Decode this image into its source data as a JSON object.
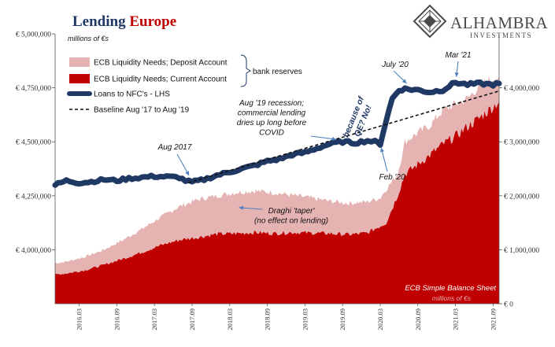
{
  "brand": {
    "name": "ALHAMBRA",
    "sub": "INVESTMENTS",
    "logo_icon": "alhambra-diamond-logo-icon",
    "color": "#4a4a4a"
  },
  "chart_data": {
    "type": "area",
    "title_part1": "Lending ",
    "title_part2": "Europe",
    "title_colors": [
      "#1f3864",
      "#c00000"
    ],
    "units_left": "millions of €s",
    "units_right": "millions of €s",
    "source_note": "ECB Simple Balance Sheet",
    "y_left": {
      "ticks": [
        "€ 5,000,000",
        "€ 4,750,000",
        "€ 4,500,000",
        "€ 4,250,000",
        "€ 4,000,000"
      ],
      "values": [
        5000000,
        4750000,
        4500000,
        4250000,
        4000000
      ],
      "range": [
        3750000,
        5000000
      ]
    },
    "y_right": {
      "ticks": [
        "€ 4,000,000",
        "€ 3,000,000",
        "€ 2,000,000",
        "€ 1,000,000",
        "€ 0"
      ],
      "values": [
        4000000,
        3000000,
        2000000,
        1000000,
        0
      ],
      "range": [
        0,
        5000000
      ]
    },
    "x_ticks": [
      "2016.03",
      "2016.09",
      "2017.03",
      "2017.09",
      "2018.03",
      "2018.09",
      "2019.03",
      "2019.09",
      "2020.03",
      "2020.09",
      "2021.03",
      "2021.09"
    ],
    "x_tick_values": [
      2016.17,
      2016.67,
      2017.17,
      2017.67,
      2018.17,
      2018.67,
      2019.17,
      2019.67,
      2020.17,
      2020.67,
      2021.17,
      2021.67
    ],
    "x_range": [
      2015.85,
      2021.75
    ],
    "legend": [
      "ECB Liquidity Needs; Deposit Account",
      "ECB Liquidity Needs; Current Account",
      "Loans to NFC's - LHS",
      "Baseline Aug '17 to Aug '19"
    ],
    "legend_bracket_label": "bank reserves",
    "series": [
      {
        "name": "ECB Liquidity Needs; Deposit Account",
        "axis": "right",
        "style": "area",
        "color": "#e6b3b3",
        "points": [
          [
            2015.85,
            750000
          ],
          [
            2016.0,
            780000
          ],
          [
            2016.25,
            870000
          ],
          [
            2016.5,
            1000000
          ],
          [
            2016.75,
            1180000
          ],
          [
            2017.0,
            1380000
          ],
          [
            2017.25,
            1600000
          ],
          [
            2017.5,
            1800000
          ],
          [
            2017.75,
            1930000
          ],
          [
            2018.0,
            2000000
          ],
          [
            2018.25,
            2060000
          ],
          [
            2018.5,
            2090000
          ],
          [
            2018.75,
            2060000
          ],
          [
            2019.0,
            2010000
          ],
          [
            2019.25,
            1960000
          ],
          [
            2019.5,
            1900000
          ],
          [
            2019.75,
            1860000
          ],
          [
            2020.0,
            1890000
          ],
          [
            2020.17,
            1960000
          ],
          [
            2020.25,
            2120000
          ],
          [
            2020.4,
            2400000
          ],
          [
            2020.5,
            3000000
          ],
          [
            2020.67,
            3170000
          ],
          [
            2020.83,
            3300000
          ],
          [
            2021.0,
            3580000
          ],
          [
            2021.17,
            3700000
          ],
          [
            2021.33,
            3800000
          ],
          [
            2021.5,
            4050000
          ],
          [
            2021.67,
            4180000
          ],
          [
            2021.75,
            4200000
          ]
        ]
      },
      {
        "name": "ECB Liquidity Needs; Current Account",
        "axis": "right",
        "style": "area",
        "color": "#c00000",
        "points": [
          [
            2015.85,
            540000
          ],
          [
            2016.0,
            560000
          ],
          [
            2016.25,
            620000
          ],
          [
            2016.5,
            720000
          ],
          [
            2016.75,
            830000
          ],
          [
            2017.0,
            950000
          ],
          [
            2017.25,
            1080000
          ],
          [
            2017.5,
            1180000
          ],
          [
            2017.75,
            1230000
          ],
          [
            2018.0,
            1290000
          ],
          [
            2018.25,
            1300000
          ],
          [
            2018.5,
            1320000
          ],
          [
            2018.75,
            1300000
          ],
          [
            2019.0,
            1320000
          ],
          [
            2019.25,
            1310000
          ],
          [
            2019.5,
            1300000
          ],
          [
            2019.75,
            1280000
          ],
          [
            2020.0,
            1310000
          ],
          [
            2020.25,
            1500000
          ],
          [
            2020.4,
            2000000
          ],
          [
            2020.5,
            2400000
          ],
          [
            2020.67,
            2580000
          ],
          [
            2020.83,
            2750000
          ],
          [
            2021.0,
            2950000
          ],
          [
            2021.17,
            3100000
          ],
          [
            2021.33,
            3280000
          ],
          [
            2021.5,
            3450000
          ],
          [
            2021.67,
            3650000
          ],
          [
            2021.75,
            3750000
          ]
        ]
      },
      {
        "name": "Loans to NFC's - LHS",
        "axis": "left",
        "style": "line",
        "color": "#1f3864",
        "points": [
          [
            2015.85,
            4300000
          ],
          [
            2016.0,
            4320000
          ],
          [
            2016.17,
            4310000
          ],
          [
            2016.33,
            4315000
          ],
          [
            2016.5,
            4325000
          ],
          [
            2016.67,
            4320000
          ],
          [
            2016.83,
            4330000
          ],
          [
            2017.0,
            4335000
          ],
          [
            2017.17,
            4340000
          ],
          [
            2017.33,
            4338000
          ],
          [
            2017.5,
            4335000
          ],
          [
            2017.58,
            4320000
          ],
          [
            2017.67,
            4313000
          ],
          [
            2017.83,
            4325000
          ],
          [
            2018.0,
            4345000
          ],
          [
            2018.17,
            4360000
          ],
          [
            2018.33,
            4375000
          ],
          [
            2018.5,
            4390000
          ],
          [
            2018.67,
            4410000
          ],
          [
            2018.83,
            4420000
          ],
          [
            2019.0,
            4440000
          ],
          [
            2019.17,
            4450000
          ],
          [
            2019.33,
            4470000
          ],
          [
            2019.5,
            4490000
          ],
          [
            2019.67,
            4500000
          ],
          [
            2019.83,
            4495000
          ],
          [
            2020.0,
            4505000
          ],
          [
            2020.1,
            4500000
          ],
          [
            2020.17,
            4490000
          ],
          [
            2020.25,
            4600000
          ],
          [
            2020.33,
            4700000
          ],
          [
            2020.42,
            4740000
          ],
          [
            2020.5,
            4745000
          ],
          [
            2020.67,
            4740000
          ],
          [
            2020.83,
            4730000
          ],
          [
            2021.0,
            4740000
          ],
          [
            2021.17,
            4775000
          ],
          [
            2021.33,
            4765000
          ],
          [
            2021.5,
            4770000
          ],
          [
            2021.67,
            4765000
          ],
          [
            2021.75,
            4770000
          ]
        ]
      },
      {
        "name": "Baseline Aug '17 to Aug '19",
        "axis": "left",
        "style": "dashed",
        "color": "#111111",
        "points": [
          [
            2017.62,
            4310000
          ],
          [
            2021.75,
            4735000
          ]
        ]
      }
    ],
    "annotations": [
      {
        "text": "Aug 2017",
        "lines": [
          "Aug 2017"
        ],
        "arrow_to": [
          2017.62,
          4318000
        ]
      },
      {
        "text": "Aug '19 recession; commercial lending dries up long before COVID",
        "lines": [
          "Aug '19 recession;",
          "commercial lending",
          "dries up long before",
          "COVID"
        ],
        "arrow_to": [
          2019.65,
          4500000
        ]
      },
      {
        "text": "because of QE? No!",
        "lines": [
          "because of",
          "QE? No!"
        ],
        "rotated": true
      },
      {
        "text": "July '20",
        "lines": [
          "July '20"
        ],
        "arrow_to": [
          2020.5,
          4745000
        ]
      },
      {
        "text": "Mar '21",
        "lines": [
          "Mar '21"
        ],
        "arrow_to": [
          2021.17,
          4775000
        ]
      },
      {
        "text": "Feb '20",
        "lines": [
          "Feb '20"
        ],
        "arrow_to": [
          2020.13,
          4495000
        ]
      },
      {
        "text": "Draghi 'taper' (no effect on lending)",
        "lines": [
          "Draghi 'taper'",
          "(no effect on lending)"
        ],
        "arrow_to": [
          2018.25,
          4210000
        ]
      }
    ]
  }
}
